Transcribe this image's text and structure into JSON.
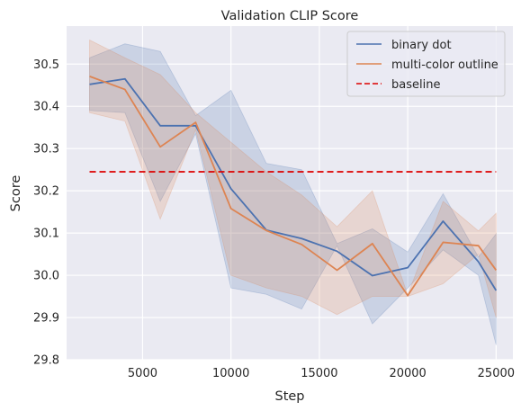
{
  "chart_data": {
    "type": "line",
    "title": "Validation CLIP Score",
    "xlabel": "Step",
    "ylabel": "Score",
    "xlim": [
      700,
      25950
    ],
    "ylim": [
      29.8,
      30.59
    ],
    "x_ticks": [
      5000,
      10000,
      15000,
      20000,
      25000
    ],
    "y_ticks": [
      29.8,
      29.9,
      30.0,
      30.1,
      30.2,
      30.3,
      30.4,
      30.5
    ],
    "grid": true,
    "legend_position": "top-right",
    "x": [
      2000,
      4000,
      6000,
      8000,
      10000,
      12000,
      14000,
      16000,
      18000,
      20000,
      22000,
      24000,
      25000
    ],
    "series": [
      {
        "name": "binary dot",
        "color": "#4c72b0",
        "style": "solid",
        "values": [
          30.452,
          30.465,
          30.354,
          30.354,
          30.205,
          30.107,
          30.087,
          30.057,
          29.999,
          30.018,
          30.128,
          30.032,
          29.964
        ],
        "band_lower": [
          30.39,
          30.385,
          30.175,
          30.335,
          29.97,
          29.955,
          29.92,
          30.07,
          29.885,
          29.97,
          30.06,
          30.0,
          29.835
        ],
        "band_upper": [
          30.515,
          30.548,
          30.53,
          30.378,
          30.438,
          30.265,
          30.25,
          30.075,
          30.11,
          30.055,
          30.193,
          30.043,
          30.098
        ]
      },
      {
        "name": "multi-color outline",
        "color": "#dd8452",
        "style": "solid",
        "values": [
          30.471,
          30.44,
          30.304,
          30.362,
          30.158,
          30.106,
          30.073,
          30.012,
          30.075,
          29.952,
          30.078,
          30.07,
          30.012
        ],
        "band_lower": [
          30.385,
          30.365,
          30.133,
          30.345,
          30.0,
          29.97,
          29.95,
          29.907,
          29.95,
          29.95,
          29.98,
          30.05,
          29.9
        ],
        "band_upper": [
          30.557,
          30.515,
          30.475,
          30.385,
          30.315,
          30.245,
          30.19,
          30.115,
          30.2,
          29.953,
          30.175,
          30.105,
          30.147
        ]
      },
      {
        "name": "baseline",
        "color": "#dd0000",
        "style": "dashed",
        "constant": 30.245,
        "x_range": [
          2000,
          25000
        ]
      }
    ]
  }
}
